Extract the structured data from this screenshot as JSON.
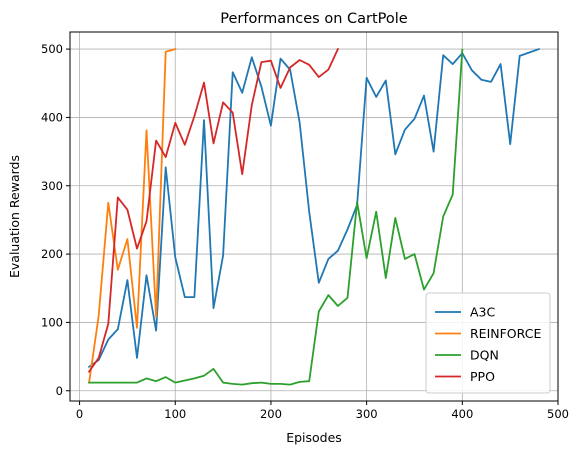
{
  "chart_data": {
    "type": "line",
    "title": "Performances on CartPole",
    "xlabel": "Episodes",
    "ylabel": "Evaluation Rewards",
    "xlim": [
      -10,
      500
    ],
    "ylim": [
      -15,
      525
    ],
    "xticks": [
      0,
      100,
      200,
      300,
      400,
      500
    ],
    "yticks": [
      0,
      100,
      200,
      300,
      400,
      500
    ],
    "grid": true,
    "legend_position": "lower-right",
    "series": [
      {
        "name": "A3C",
        "color": "#1f77b4",
        "x": [
          10,
          20,
          30,
          40,
          50,
          60,
          70,
          80,
          90,
          100,
          110,
          120,
          130,
          140,
          150,
          160,
          170,
          180,
          190,
          200,
          210,
          220,
          230,
          240,
          250,
          260,
          270,
          280,
          290,
          300,
          310,
          320,
          330,
          340,
          350,
          360,
          370,
          380,
          390,
          400,
          410,
          420,
          430,
          440,
          450,
          460,
          470,
          480
        ],
        "y": [
          35,
          45,
          75,
          90,
          162,
          48,
          169,
          88,
          327,
          195,
          137,
          137,
          396,
          121,
          198,
          466,
          436,
          488,
          445,
          388,
          486,
          470,
          393,
          262,
          158,
          193,
          205,
          236,
          272,
          458,
          430,
          454,
          346,
          382,
          398,
          432,
          350,
          491,
          478,
          494,
          469,
          455,
          452,
          478,
          361,
          490,
          495,
          500
        ]
      },
      {
        "name": "REINFORCE",
        "color": "#ff7f0e",
        "x": [
          10,
          20,
          30,
          40,
          50,
          60,
          70,
          80,
          90,
          100
        ],
        "y": [
          12,
          110,
          275,
          177,
          222,
          92,
          381,
          108,
          496,
          500
        ]
      },
      {
        "name": "DQN",
        "color": "#2ca02c",
        "x": [
          10,
          20,
          30,
          40,
          50,
          60,
          70,
          80,
          90,
          100,
          110,
          120,
          130,
          140,
          150,
          160,
          170,
          180,
          190,
          200,
          210,
          220,
          230,
          240,
          250,
          260,
          270,
          280,
          290,
          300,
          310,
          320,
          330,
          340,
          350,
          360,
          370,
          380,
          390,
          400
        ],
        "y": [
          12,
          12,
          12,
          12,
          12,
          12,
          18,
          14,
          20,
          12,
          15,
          18,
          22,
          32,
          12,
          10,
          9,
          11,
          12,
          10,
          10,
          9,
          13,
          14,
          116,
          140,
          124,
          136,
          276,
          194,
          262,
          165,
          253,
          193,
          200,
          148,
          172,
          255,
          287,
          499
        ]
      },
      {
        "name": "PPO",
        "color": "#d62728",
        "x": [
          10,
          20,
          30,
          40,
          50,
          60,
          70,
          80,
          90,
          100,
          110,
          120,
          130,
          140,
          150,
          160,
          170,
          180,
          190,
          200,
          210,
          220,
          230,
          240,
          250,
          260,
          270
        ],
        "y": [
          28,
          48,
          98,
          283,
          265,
          208,
          248,
          366,
          342,
          392,
          360,
          402,
          451,
          362,
          422,
          407,
          317,
          418,
          481,
          483,
          443,
          473,
          484,
          477,
          459,
          470,
          500
        ]
      }
    ]
  }
}
